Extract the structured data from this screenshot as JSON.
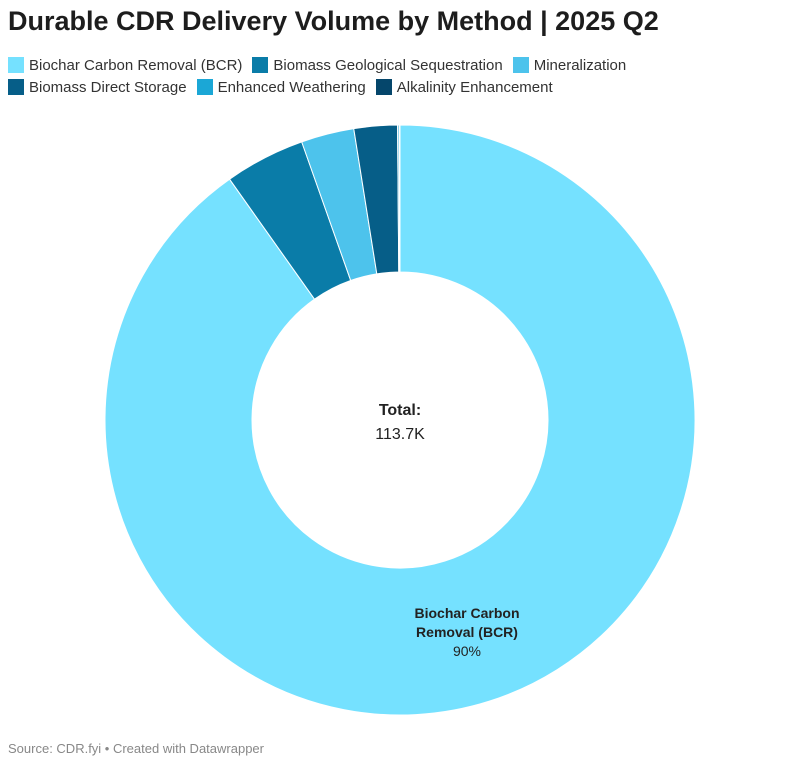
{
  "title": "Durable CDR Delivery Volume by Method | 2025 Q2",
  "source": "Source: CDR.fyi • Created with Datawrapper",
  "chart_data": {
    "type": "pie",
    "donut": true,
    "title": "Durable CDR Delivery Volume by Method | 2025 Q2",
    "center_label": "Total:",
    "center_value": "113.7K",
    "legend_position": "top",
    "slices": [
      {
        "name": "Biochar Carbon Removal (BCR)",
        "value": 102.6,
        "percent": 90.2,
        "color": "#75e1ff",
        "label": "Biochar Carbon Removal (BCR)",
        "label_pct": "90%"
      },
      {
        "name": "Biomass Geological Sequestration",
        "value": 5.0,
        "percent": 4.4,
        "color": "#0a7ca8"
      },
      {
        "name": "Mineralization",
        "value": 3.3,
        "percent": 2.9,
        "color": "#4dc3ec"
      },
      {
        "name": "Biomass Direct Storage",
        "value": 2.7,
        "percent": 2.4,
        "color": "#065e88"
      },
      {
        "name": "Enhanced Weathering",
        "value": 0.1,
        "percent": 0.1,
        "color": "#1ba7d6"
      },
      {
        "name": "Alkalinity Enhancement",
        "value": 0.05,
        "percent": 0.05,
        "color": "#05466b"
      }
    ]
  }
}
